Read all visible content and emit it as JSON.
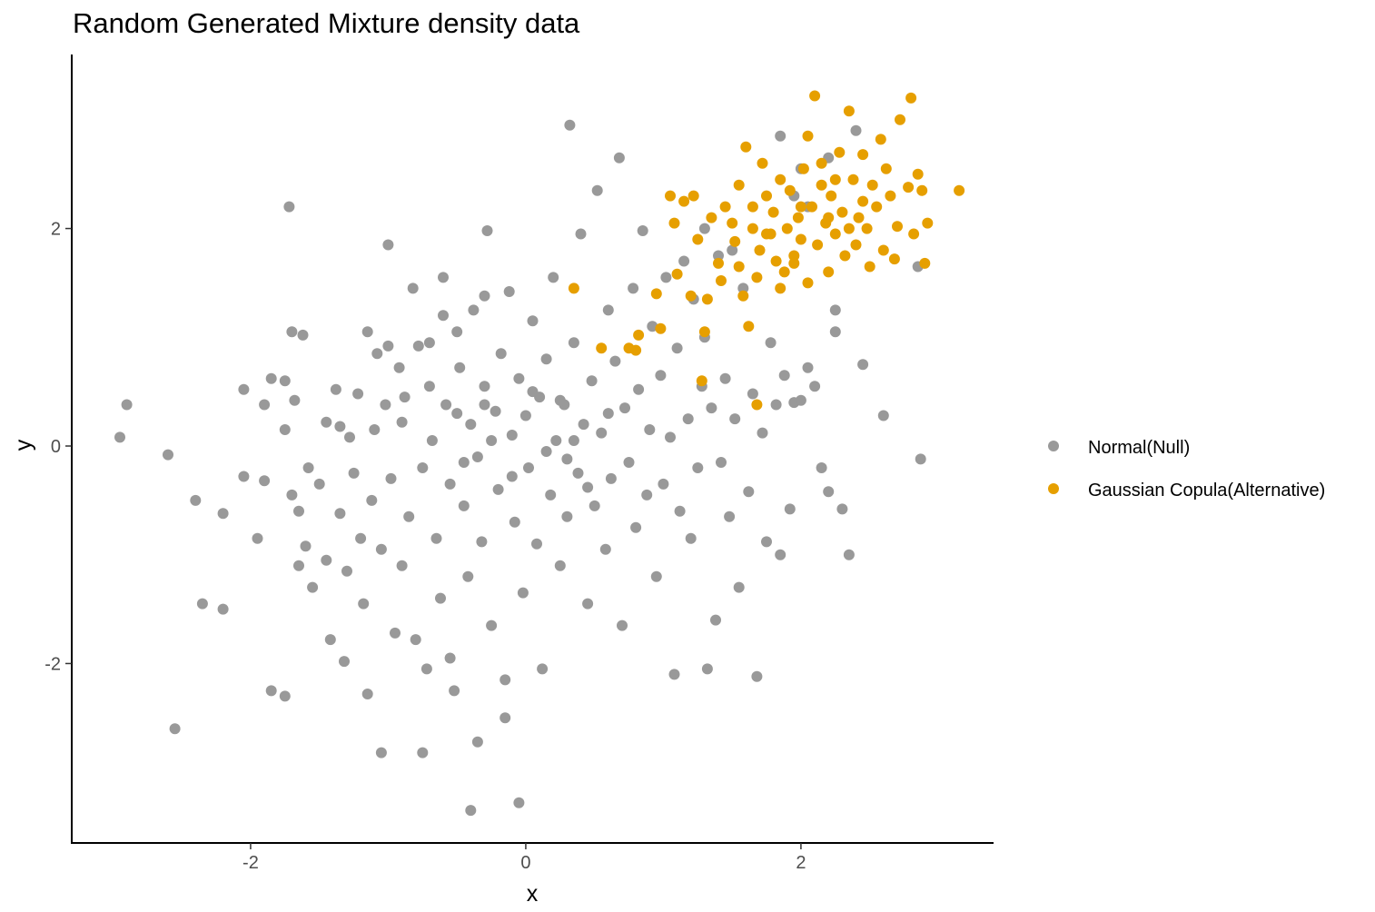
{
  "chart_data": {
    "type": "scatter",
    "title": "Random Generated Mixture density data",
    "xlabel": "x",
    "ylabel": "y",
    "xlim": [
      -3.3,
      3.4
    ],
    "ylim": [
      -3.65,
      3.6
    ],
    "xticks": [
      -2,
      0,
      2
    ],
    "yticks": [
      -2,
      0,
      2
    ],
    "xtick_labels": [
      "-2",
      "0",
      "2"
    ],
    "ytick_labels": [
      "-2",
      "0",
      "2"
    ],
    "grid": false,
    "legend_position": "right",
    "series": [
      {
        "name": "Normal(Null)",
        "color": "#999999",
        "points": [
          [
            -2.95,
            0.08
          ],
          [
            -2.9,
            0.38
          ],
          [
            -2.6,
            -0.08
          ],
          [
            -2.55,
            -2.6
          ],
          [
            -2.4,
            -0.5
          ],
          [
            -2.35,
            -1.45
          ],
          [
            -2.2,
            -0.62
          ],
          [
            -2.2,
            -1.5
          ],
          [
            -2.05,
            0.52
          ],
          [
            -2.05,
            -0.28
          ],
          [
            -1.95,
            -0.85
          ],
          [
            -1.9,
            0.38
          ],
          [
            -1.9,
            -0.32
          ],
          [
            -1.85,
            0.62
          ],
          [
            -1.85,
            -2.25
          ],
          [
            -1.75,
            -2.3
          ],
          [
            -1.75,
            0.6
          ],
          [
            -1.75,
            0.15
          ],
          [
            -1.72,
            2.2
          ],
          [
            -1.7,
            1.05
          ],
          [
            -1.7,
            -0.45
          ],
          [
            -1.68,
            0.42
          ],
          [
            -1.65,
            -0.6
          ],
          [
            -1.65,
            -1.1
          ],
          [
            -1.62,
            1.02
          ],
          [
            -1.6,
            -0.92
          ],
          [
            -1.58,
            -0.2
          ],
          [
            -1.55,
            -1.3
          ],
          [
            -1.5,
            -0.35
          ],
          [
            -1.45,
            0.22
          ],
          [
            -1.45,
            -1.05
          ],
          [
            -1.42,
            -1.78
          ],
          [
            -1.38,
            0.52
          ],
          [
            -1.35,
            0.18
          ],
          [
            -1.35,
            -0.62
          ],
          [
            -1.32,
            -1.98
          ],
          [
            -1.3,
            -1.15
          ],
          [
            -1.28,
            0.08
          ],
          [
            -1.25,
            -0.25
          ],
          [
            -1.22,
            0.48
          ],
          [
            -1.2,
            -0.85
          ],
          [
            -1.18,
            -1.45
          ],
          [
            -1.15,
            1.05
          ],
          [
            -1.15,
            -2.28
          ],
          [
            -1.12,
            -0.5
          ],
          [
            -1.1,
            0.15
          ],
          [
            -1.08,
            0.85
          ],
          [
            -1.05,
            -0.95
          ],
          [
            -1.05,
            -2.82
          ],
          [
            -1.02,
            0.38
          ],
          [
            -1.0,
            1.85
          ],
          [
            -0.98,
            -0.3
          ],
          [
            -0.95,
            -1.72
          ],
          [
            -0.92,
            0.72
          ],
          [
            -0.9,
            0.22
          ],
          [
            -0.9,
            -1.1
          ],
          [
            -0.88,
            0.45
          ],
          [
            -0.85,
            -0.65
          ],
          [
            -0.82,
            1.45
          ],
          [
            -0.8,
            -1.78
          ],
          [
            -0.78,
            0.92
          ],
          [
            -0.75,
            -0.2
          ],
          [
            -0.72,
            -2.05
          ],
          [
            -0.7,
            0.55
          ],
          [
            -0.68,
            0.05
          ],
          [
            -0.65,
            -0.85
          ],
          [
            -0.62,
            -1.4
          ],
          [
            -0.6,
            1.55
          ],
          [
            -0.58,
            0.38
          ],
          [
            -0.55,
            -0.35
          ],
          [
            -0.52,
            -2.25
          ],
          [
            -0.5,
            1.05
          ],
          [
            -0.48,
            0.72
          ],
          [
            -0.45,
            -0.55
          ],
          [
            -0.42,
            -1.2
          ],
          [
            -0.4,
            0.2
          ],
          [
            -0.38,
            1.25
          ],
          [
            -0.35,
            -0.1
          ],
          [
            -0.32,
            -0.88
          ],
          [
            -0.3,
            0.55
          ],
          [
            -0.28,
            1.98
          ],
          [
            -0.25,
            -1.65
          ],
          [
            -0.22,
            0.32
          ],
          [
            -0.2,
            -0.4
          ],
          [
            -0.18,
            0.85
          ],
          [
            -0.15,
            -2.15
          ],
          [
            -0.12,
            1.42
          ],
          [
            -0.1,
            0.1
          ],
          [
            -0.08,
            -0.7
          ],
          [
            -0.05,
            0.62
          ],
          [
            -0.02,
            -1.35
          ],
          [
            0.0,
            0.28
          ],
          [
            0.02,
            -0.2
          ],
          [
            0.05,
            1.15
          ],
          [
            0.08,
            -0.9
          ],
          [
            0.1,
            0.45
          ],
          [
            0.12,
            -2.05
          ],
          [
            0.15,
            0.8
          ],
          [
            0.18,
            -0.45
          ],
          [
            0.2,
            1.55
          ],
          [
            0.22,
            0.05
          ],
          [
            0.25,
            -1.1
          ],
          [
            0.28,
            0.38
          ],
          [
            0.3,
            -0.65
          ],
          [
            0.32,
            2.95
          ],
          [
            0.35,
            0.95
          ],
          [
            0.38,
            -0.25
          ],
          [
            0.4,
            1.95
          ],
          [
            0.42,
            0.2
          ],
          [
            0.45,
            -1.45
          ],
          [
            0.48,
            0.6
          ],
          [
            0.5,
            -0.55
          ],
          [
            0.52,
            2.35
          ],
          [
            0.55,
            0.12
          ],
          [
            0.58,
            -0.95
          ],
          [
            0.6,
            1.25
          ],
          [
            0.62,
            -0.3
          ],
          [
            0.65,
            0.78
          ],
          [
            0.68,
            2.65
          ],
          [
            0.7,
            -1.65
          ],
          [
            0.72,
            0.35
          ],
          [
            0.75,
            -0.15
          ],
          [
            0.78,
            1.45
          ],
          [
            0.8,
            -0.75
          ],
          [
            0.82,
            0.52
          ],
          [
            0.85,
            1.98
          ],
          [
            0.88,
            -0.45
          ],
          [
            0.9,
            0.15
          ],
          [
            0.92,
            1.1
          ],
          [
            0.95,
            -1.2
          ],
          [
            0.98,
            0.65
          ],
          [
            1.0,
            -0.35
          ],
          [
            1.02,
            1.55
          ],
          [
            1.05,
            0.08
          ],
          [
            1.08,
            -2.1
          ],
          [
            1.1,
            0.9
          ],
          [
            1.12,
            -0.6
          ],
          [
            1.15,
            1.7
          ],
          [
            1.18,
            0.25
          ],
          [
            1.2,
            -0.85
          ],
          [
            1.22,
            1.35
          ],
          [
            1.25,
            -0.2
          ],
          [
            1.28,
            0.55
          ],
          [
            1.3,
            1.0
          ],
          [
            1.32,
            -2.05
          ],
          [
            1.35,
            0.35
          ],
          [
            1.38,
            -1.6
          ],
          [
            1.4,
            1.75
          ],
          [
            1.42,
            -0.15
          ],
          [
            1.45,
            0.62
          ],
          [
            1.48,
            -0.65
          ],
          [
            1.52,
            0.25
          ],
          [
            1.55,
            -1.3
          ],
          [
            1.58,
            1.45
          ],
          [
            1.62,
            -0.42
          ],
          [
            1.65,
            0.48
          ],
          [
            1.68,
            -2.12
          ],
          [
            1.72,
            0.12
          ],
          [
            1.75,
            -0.88
          ],
          [
            1.78,
            0.95
          ],
          [
            1.82,
            0.38
          ],
          [
            1.85,
            -1.0
          ],
          [
            1.88,
            0.65
          ],
          [
            1.92,
            -0.58
          ],
          [
            1.95,
            0.4
          ],
          [
            2.0,
            0.42
          ],
          [
            2.05,
            0.72
          ],
          [
            2.1,
            0.55
          ],
          [
            2.15,
            -0.2
          ],
          [
            2.2,
            -0.42
          ],
          [
            2.25,
            1.05
          ],
          [
            2.3,
            -0.58
          ],
          [
            2.35,
            -1.0
          ],
          [
            2.45,
            0.75
          ],
          [
            2.6,
            0.28
          ],
          [
            2.85,
            1.65
          ],
          [
            2.87,
            -0.12
          ],
          [
            1.95,
            2.3
          ],
          [
            2.0,
            2.55
          ],
          [
            2.05,
            2.2
          ],
          [
            2.2,
            2.65
          ],
          [
            2.4,
            2.9
          ],
          [
            2.25,
            1.25
          ],
          [
            1.85,
            2.85
          ],
          [
            1.5,
            1.8
          ],
          [
            1.3,
            2.0
          ],
          [
            -0.15,
            -2.5
          ],
          [
            -0.05,
            -3.28
          ],
          [
            -0.4,
            -3.35
          ],
          [
            -0.35,
            -2.72
          ],
          [
            -0.75,
            -2.82
          ],
          [
            -0.55,
            -1.95
          ],
          [
            -0.6,
            1.2
          ],
          [
            -0.3,
            1.38
          ],
          [
            -0.7,
            0.95
          ],
          [
            -1.0,
            0.92
          ],
          [
            -0.5,
            0.3
          ],
          [
            -0.25,
            0.05
          ],
          [
            0.15,
            -0.05
          ],
          [
            0.35,
            0.05
          ],
          [
            0.45,
            -0.38
          ],
          [
            -0.1,
            -0.28
          ],
          [
            0.25,
            0.42
          ],
          [
            -0.3,
            0.38
          ],
          [
            0.6,
            0.3
          ],
          [
            0.05,
            0.5
          ],
          [
            -0.45,
            -0.15
          ],
          [
            0.3,
            -0.12
          ]
        ]
      },
      {
        "name": "Gaussian Copula(Alternative)",
        "color": "#E69F00",
        "points": [
          [
            0.35,
            1.45
          ],
          [
            0.55,
            0.9
          ],
          [
            0.75,
            0.9
          ],
          [
            0.8,
            0.88
          ],
          [
            0.82,
            1.02
          ],
          [
            0.95,
            1.4
          ],
          [
            0.98,
            1.08
          ],
          [
            1.05,
            2.3
          ],
          [
            1.08,
            2.05
          ],
          [
            1.1,
            1.58
          ],
          [
            1.15,
            2.25
          ],
          [
            1.2,
            1.38
          ],
          [
            1.22,
            2.3
          ],
          [
            1.25,
            1.9
          ],
          [
            1.28,
            0.6
          ],
          [
            1.3,
            1.05
          ],
          [
            1.32,
            1.35
          ],
          [
            1.35,
            2.1
          ],
          [
            1.4,
            1.68
          ],
          [
            1.42,
            1.52
          ],
          [
            1.45,
            2.2
          ],
          [
            1.5,
            2.05
          ],
          [
            1.52,
            1.88
          ],
          [
            1.55,
            2.4
          ],
          [
            1.58,
            1.38
          ],
          [
            1.6,
            2.75
          ],
          [
            1.62,
            1.1
          ],
          [
            1.65,
            2.2
          ],
          [
            1.68,
            1.55
          ],
          [
            1.7,
            1.8
          ],
          [
            1.72,
            2.6
          ],
          [
            1.75,
            2.3
          ],
          [
            1.78,
            1.95
          ],
          [
            1.8,
            2.15
          ],
          [
            1.82,
            1.7
          ],
          [
            1.85,
            2.45
          ],
          [
            1.88,
            1.6
          ],
          [
            1.9,
            2.0
          ],
          [
            1.92,
            2.35
          ],
          [
            1.95,
            1.75
          ],
          [
            1.98,
            2.1
          ],
          [
            2.0,
            1.9
          ],
          [
            2.02,
            2.55
          ],
          [
            2.05,
            1.5
          ],
          [
            2.08,
            2.2
          ],
          [
            2.1,
            3.22
          ],
          [
            2.12,
            1.85
          ],
          [
            2.15,
            2.4
          ],
          [
            2.18,
            2.05
          ],
          [
            2.2,
            1.6
          ],
          [
            2.22,
            2.3
          ],
          [
            2.25,
            1.95
          ],
          [
            2.28,
            2.7
          ],
          [
            2.3,
            2.15
          ],
          [
            2.32,
            1.75
          ],
          [
            2.35,
            3.08
          ],
          [
            2.38,
            2.45
          ],
          [
            2.4,
            1.85
          ],
          [
            2.42,
            2.1
          ],
          [
            2.45,
            2.68
          ],
          [
            2.48,
            2.0
          ],
          [
            2.5,
            1.65
          ],
          [
            2.52,
            2.4
          ],
          [
            2.55,
            2.2
          ],
          [
            2.58,
            2.82
          ],
          [
            2.6,
            1.8
          ],
          [
            2.62,
            2.55
          ],
          [
            2.65,
            2.3
          ],
          [
            2.68,
            1.72
          ],
          [
            2.7,
            2.02
          ],
          [
            2.72,
            3.0
          ],
          [
            2.78,
            2.38
          ],
          [
            2.8,
            3.2
          ],
          [
            2.82,
            1.95
          ],
          [
            2.85,
            2.5
          ],
          [
            2.88,
            2.35
          ],
          [
            2.9,
            1.68
          ],
          [
            2.92,
            2.05
          ],
          [
            3.15,
            2.35
          ],
          [
            1.68,
            0.38
          ],
          [
            1.85,
            1.45
          ],
          [
            1.95,
            1.68
          ],
          [
            2.05,
            2.85
          ],
          [
            2.15,
            2.6
          ],
          [
            2.25,
            2.45
          ],
          [
            1.75,
            1.95
          ],
          [
            2.35,
            2.0
          ],
          [
            2.45,
            2.25
          ],
          [
            1.55,
            1.65
          ],
          [
            1.65,
            2.0
          ],
          [
            2.0,
            2.2
          ],
          [
            2.2,
            2.1
          ]
        ]
      }
    ]
  },
  "legend": {
    "items": [
      {
        "label": "Normal(Null)",
        "color": "#999999"
      },
      {
        "label": "Gaussian Copula(Alternative)",
        "color": "#E69F00"
      }
    ]
  }
}
